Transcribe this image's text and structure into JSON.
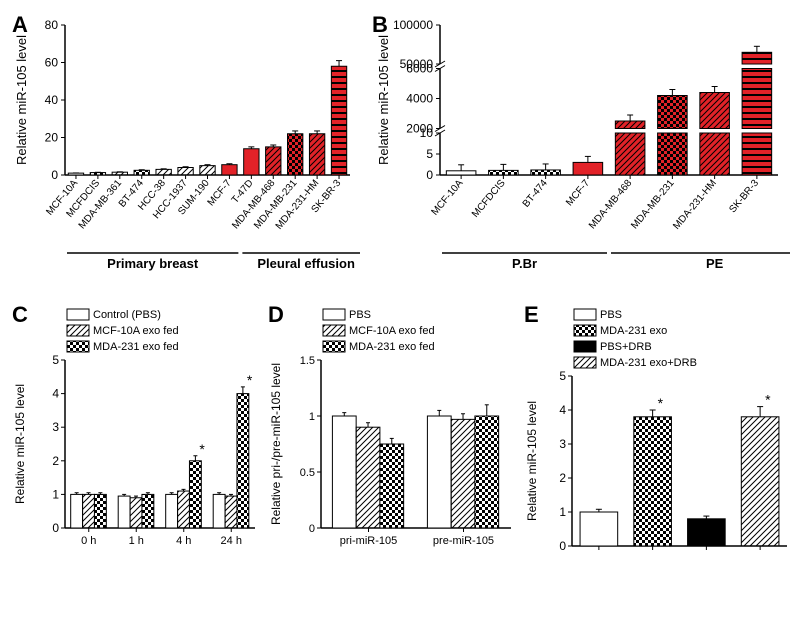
{
  "panelA": {
    "label": "A",
    "type": "bar",
    "ylabel": "Relative miR-105 level",
    "groupLabels": [
      "Primary breast",
      "Pleural effusion"
    ],
    "groupRanges": [
      [
        0,
        7
      ],
      [
        8,
        13
      ]
    ],
    "categories": [
      "MCF-10A",
      "MCFDCIS",
      "MDA-MB-361",
      "BT-474",
      "HCC-38",
      "HCC-1937",
      "SUM-190",
      "MCF-7",
      "T-47D",
      "MDA-MB-468",
      "MDA-MB-231",
      "MDA-231-HM",
      "SK-BR-3"
    ],
    "values": [
      1,
      1.3,
      1.5,
      2.5,
      3,
      4,
      5,
      5.5,
      14,
      15,
      22,
      22,
      58
    ],
    "errors": [
      0.1,
      0.15,
      0.2,
      0.3,
      0.3,
      0.4,
      0.5,
      0.5,
      1,
      1,
      1.5,
      1.5,
      3
    ],
    "colors": [
      "#ffffff",
      "#ffffff",
      "#ffffff",
      "#ffffff",
      "#ffffff",
      "#ffffff",
      "#ffffff",
      "#e22228",
      "#e22228",
      "#e22228",
      "#e22228",
      "#e22228",
      "#e22228"
    ],
    "patterns": [
      "solid",
      "checker",
      "diag",
      "checker",
      "diag",
      "diag",
      "diag",
      "solid",
      "solid",
      "diag",
      "checker",
      "diag",
      "hstripe"
    ],
    "ylim": [
      0,
      80
    ],
    "ytick": 20,
    "axis_break": false,
    "background": "#ffffff",
    "label_fontsize": 12,
    "cat_fontsize": 10,
    "bar_width": 0.7,
    "title_fontsize": 13
  },
  "panelB": {
    "label": "B",
    "type": "bar",
    "ylabel": "Relative miR-105 level",
    "groupLabels": [
      "P.Br",
      "PE"
    ],
    "groupRanges": [
      [
        0,
        3
      ],
      [
        4,
        8
      ]
    ],
    "categories": [
      "MCF-10A",
      "MCFDCIS",
      "BT-474",
      "MCF-7",
      "MDA-MB-468",
      "MDA-MB-231",
      "MDA-231-HM",
      "SK-BR-3"
    ],
    "values": [
      1,
      1.1,
      1.2,
      3,
      2500,
      4200,
      4400,
      65000
    ],
    "errors": [
      0.1,
      0.1,
      0.1,
      0.3,
      200,
      300,
      300,
      5000
    ],
    "colors": [
      "#ffffff",
      "#ffffff",
      "#ffffff",
      "#e22228",
      "#e22228",
      "#e22228",
      "#e22228",
      "#e22228"
    ],
    "patterns": [
      "solid",
      "checker",
      "checker",
      "solid",
      "diag",
      "checker",
      "diag",
      "hstripe"
    ],
    "lower_ylim": [
      0,
      10
    ],
    "lower_ytick": 5,
    "upper_ylim": [
      2000,
      6000
    ],
    "upper_ytick": 2000,
    "top_ylim": [
      50000,
      100000
    ],
    "top_ytick": 50000,
    "background": "#ffffff",
    "label_fontsize": 12,
    "cat_fontsize": 10,
    "bar_width": 0.7
  },
  "panelC": {
    "label": "C",
    "type": "grouped-bar",
    "ylabel": "Relative miR-105 level",
    "categories": [
      "0 h",
      "1 h",
      "4 h",
      "24 h"
    ],
    "series": [
      {
        "name": "Control (PBS)",
        "color": "#ffffff",
        "pattern": "solid",
        "values": [
          1,
          0.95,
          1,
          1
        ],
        "errors": [
          0.05,
          0.05,
          0.05,
          0.05
        ]
      },
      {
        "name": "MCF-10A exo fed",
        "color": "#ffffff",
        "pattern": "diag",
        "values": [
          1,
          0.9,
          1.1,
          0.95
        ],
        "errors": [
          0.05,
          0.05,
          0.05,
          0.05
        ]
      },
      {
        "name": "MDA-231 exo fed",
        "color": "#ffffff",
        "pattern": "checker",
        "values": [
          1,
          1,
          2,
          4
        ],
        "errors": [
          0.05,
          0.05,
          0.15,
          0.2
        ]
      }
    ],
    "significance": [
      {
        "cat": 2,
        "series": 2
      },
      {
        "cat": 3,
        "series": 2
      }
    ],
    "ylim": [
      0,
      5
    ],
    "ytick": 1,
    "label_fontsize": 12,
    "cat_fontsize": 11,
    "legend_fontsize": 11,
    "bar_width": 0.25
  },
  "panelD": {
    "label": "D",
    "type": "grouped-bar",
    "ylabel": "Relative pri-/pre-miR-105 level",
    "categories": [
      "pri-miR-105",
      "pre-miR-105"
    ],
    "series": [
      {
        "name": "PBS",
        "color": "#ffffff",
        "pattern": "solid",
        "values": [
          1,
          1
        ],
        "errors": [
          0.03,
          0.05
        ]
      },
      {
        "name": "MCF-10A exo fed",
        "color": "#ffffff",
        "pattern": "diag",
        "values": [
          0.9,
          0.97
        ],
        "errors": [
          0.04,
          0.05
        ]
      },
      {
        "name": "MDA-231 exo fed",
        "color": "#ffffff",
        "pattern": "checker",
        "values": [
          0.75,
          1
        ],
        "errors": [
          0.05,
          0.1
        ]
      }
    ],
    "ylim": [
      0,
      1.5
    ],
    "ytick": 0.5,
    "label_fontsize": 11,
    "cat_fontsize": 11,
    "legend_fontsize": 11,
    "bar_width": 0.25
  },
  "panelE": {
    "label": "E",
    "type": "grouped-bar-single",
    "ylabel": "Relative miR-105 level",
    "bars": [
      {
        "name": "PBS",
        "color": "#ffffff",
        "pattern": "solid",
        "value": 1,
        "error": 0.08,
        "sig": false
      },
      {
        "name": "MDA-231 exo",
        "color": "#ffffff",
        "pattern": "checker",
        "value": 3.8,
        "error": 0.2,
        "sig": true
      },
      {
        "name": "PBS+DRB",
        "color": "#000000",
        "pattern": "solid",
        "value": 0.8,
        "error": 0.08,
        "sig": false
      },
      {
        "name": "MDA-231 exo+DRB",
        "color": "#ffffff",
        "pattern": "diag",
        "value": 3.8,
        "error": 0.3,
        "sig": true
      }
    ],
    "ylim": [
      0,
      5
    ],
    "ytick": 1,
    "label_fontsize": 12,
    "legend_fontsize": 11,
    "bar_width": 0.7
  },
  "colors": {
    "red": "#e22228",
    "black": "#000000",
    "white": "#ffffff"
  }
}
